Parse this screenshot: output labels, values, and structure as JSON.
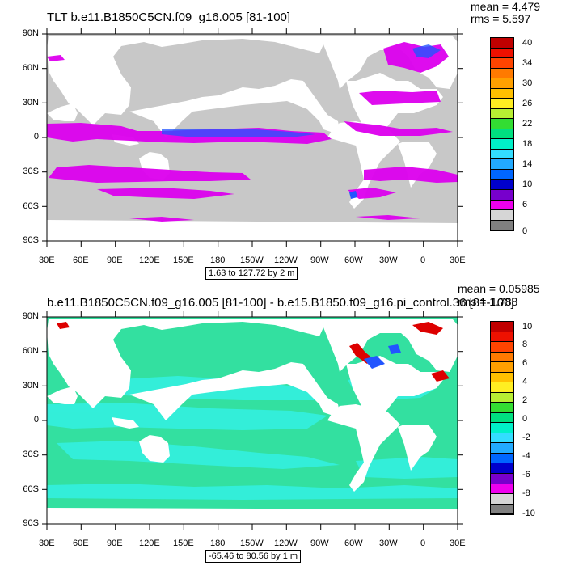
{
  "panel1": {
    "title": "TLT b.e11.B1850C5CN.f09_g16.005 [81-100]",
    "mean_label": "mean = 4.479",
    "rms_label": "rms = 5.597",
    "range_label": "1.63 to 127.72 by 2 m",
    "colorbar_labels": [
      "40",
      "34",
      "30",
      "26",
      "22",
      "18",
      "14",
      "10",
      "6",
      "0"
    ],
    "colorbar_colors": [
      "#c00000",
      "#ee1100",
      "#ff4400",
      "#ff7a00",
      "#ffa000",
      "#ffc000",
      "#ffee22",
      "#b8ee33",
      "#33dd33",
      "#00e080",
      "#00f0c8",
      "#33ddff",
      "#22aaff",
      "#0066ff",
      "#0000cc",
      "#7700cc",
      "#ee00ee",
      "#d6d6d6",
      "#808080"
    ]
  },
  "panel2": {
    "title": "b.e11.B1850C5CN.f09_g16.005 [81-100] - b.e15.B1850.f09_g16.pi_control.36 [81-100]",
    "mean_label": "mean = 0.05985",
    "rms_label": "rms = 1.788",
    "range_label": "-65.46 to 80.56 by 1 m",
    "colorbar_labels": [
      "10",
      "8",
      "6",
      "4",
      "2",
      "0",
      "-2",
      "-4",
      "-6",
      "-8",
      "-10"
    ],
    "colorbar_colors": [
      "#c00000",
      "#ee1100",
      "#ff4400",
      "#ff7a00",
      "#ffa000",
      "#ffc000",
      "#ffee22",
      "#b8ee33",
      "#33dd33",
      "#00e080",
      "#00f0c8",
      "#33ddff",
      "#22aaff",
      "#0066ff",
      "#0000cc",
      "#7700cc",
      "#ee00ee",
      "#d6d6d6",
      "#808080"
    ]
  },
  "lat_labels": [
    "90N",
    "60N",
    "30N",
    "0",
    "30S",
    "60S",
    "90S"
  ],
  "lon_labels": [
    "30E",
    "60E",
    "90E",
    "120E",
    "150E",
    "180",
    "150W",
    "120W",
    "90W",
    "60W",
    "30W",
    "0",
    "30E"
  ],
  "colors": {
    "panel1_ocean": "#c8c8c8",
    "panel1_feature": "#dd00ee",
    "panel1_feature_blue": "#2255ff",
    "panel2_ocean": "#33e0a0",
    "panel2_cyan": "#33f0e0",
    "panel2_red": "#dd0000",
    "land": "#ffffff"
  }
}
